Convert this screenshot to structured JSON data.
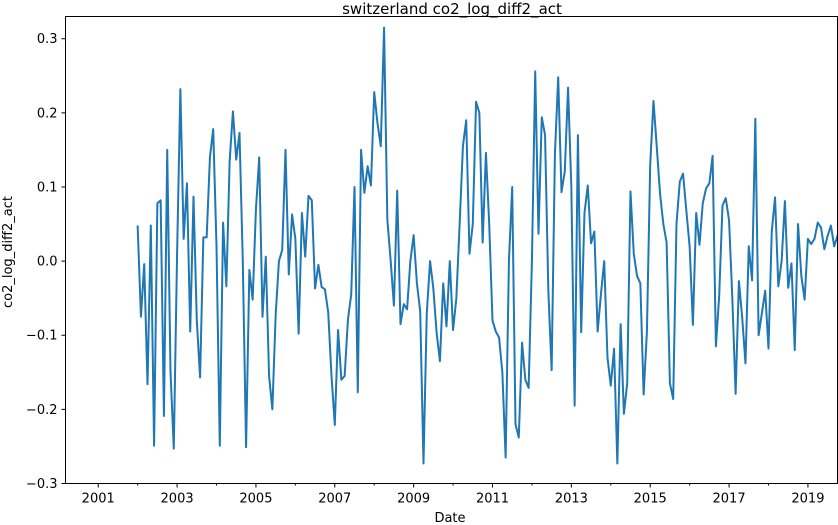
{
  "chart_data": {
    "type": "line",
    "title": "switzerland co2_log_diff2_act",
    "xlabel": "Date",
    "ylabel": "co2_log_diff2_act",
    "xlim": [
      2000.17,
      2019.75
    ],
    "ylim": [
      -0.3,
      0.33
    ],
    "x_ticks": [
      2001,
      2003,
      2005,
      2007,
      2009,
      2011,
      2013,
      2015,
      2017,
      2019
    ],
    "x_tick_labels": [
      "2001",
      "2003",
      "2005",
      "2007",
      "2009",
      "2011",
      "2013",
      "2015",
      "2017",
      "2019"
    ],
    "y_ticks": [
      -0.3,
      -0.2,
      -0.1,
      0.0,
      0.1,
      0.2,
      0.3
    ],
    "y_tick_labels": [
      "−0.3",
      "−0.2",
      "−0.1",
      "0.0",
      "0.1",
      "0.2",
      "0.3"
    ],
    "grid": false,
    "series": [
      {
        "name": "co2_log_diff2_act",
        "color": "#1f77b4",
        "start_year": 2002.0,
        "step_years": 0.08333,
        "values": [
          0.047,
          -0.075,
          -0.004,
          -0.166,
          0.048,
          -0.249,
          0.078,
          0.082,
          -0.209,
          0.15,
          -0.15,
          -0.253,
          0.01,
          0.232,
          0.03,
          0.105,
          -0.095,
          0.087,
          -0.08,
          -0.157,
          0.032,
          0.032,
          0.14,
          0.178,
          0.02,
          -0.249,
          0.052,
          -0.034,
          0.135,
          0.202,
          0.137,
          0.173,
          0.0,
          -0.251,
          -0.012,
          -0.052,
          0.07,
          0.14,
          -0.075,
          0.006,
          -0.155,
          -0.2,
          -0.073,
          0.0,
          0.015,
          0.15,
          -0.018,
          0.063,
          0.03,
          -0.098,
          0.065,
          0.006,
          0.088,
          0.082,
          -0.037,
          -0.005,
          -0.035,
          -0.038,
          -0.069,
          -0.155,
          -0.221,
          -0.093,
          -0.16,
          -0.155,
          -0.079,
          -0.045,
          0.1,
          -0.177,
          0.15,
          0.092,
          0.128,
          0.102,
          0.228,
          0.186,
          0.155,
          0.315,
          0.056,
          0.001,
          -0.06,
          0.095,
          -0.085,
          -0.058,
          -0.065,
          0.0,
          0.035,
          -0.03,
          -0.068,
          -0.273,
          -0.07,
          0.0,
          -0.037,
          -0.097,
          -0.135,
          -0.03,
          -0.088,
          0.0,
          -0.093,
          -0.05,
          0.05,
          0.155,
          0.19,
          0.01,
          0.05,
          0.215,
          0.2,
          0.025,
          0.146,
          0.05,
          -0.08,
          -0.095,
          -0.103,
          -0.15,
          -0.265,
          0.0,
          0.1,
          -0.22,
          -0.238,
          -0.11,
          -0.16,
          -0.171,
          0.0,
          0.256,
          0.037,
          0.194,
          0.17,
          -0.04,
          -0.147,
          0.145,
          0.248,
          0.093,
          0.121,
          0.234,
          0.1,
          -0.195,
          0.17,
          -0.096,
          0.065,
          0.102,
          0.024,
          0.04,
          -0.095,
          -0.045,
          0.0,
          -0.13,
          -0.168,
          -0.118,
          -0.273,
          -0.085,
          -0.206,
          -0.165,
          0.094,
          0.01,
          -0.02,
          -0.03,
          -0.18,
          -0.095,
          0.13,
          0.216,
          0.154,
          0.091,
          0.05,
          0.025,
          -0.165,
          -0.186,
          0.05,
          0.107,
          0.118,
          0.068,
          0.02,
          -0.086,
          0.065,
          0.022,
          0.078,
          0.098,
          0.105,
          0.142,
          -0.115,
          -0.047,
          0.075,
          0.085,
          0.055,
          -0.05,
          -0.179,
          -0.027,
          -0.076,
          -0.138,
          0.02,
          -0.026,
          0.192,
          -0.1,
          -0.07,
          -0.04,
          -0.118,
          0.04,
          0.086,
          -0.034,
          0.0,
          0.081,
          -0.036,
          -0.003,
          -0.12,
          0.05,
          -0.02,
          -0.052,
          0.03,
          0.023,
          0.03,
          0.052,
          0.045,
          0.016,
          0.034,
          0.048,
          0.02,
          0.034
        ]
      }
    ]
  }
}
